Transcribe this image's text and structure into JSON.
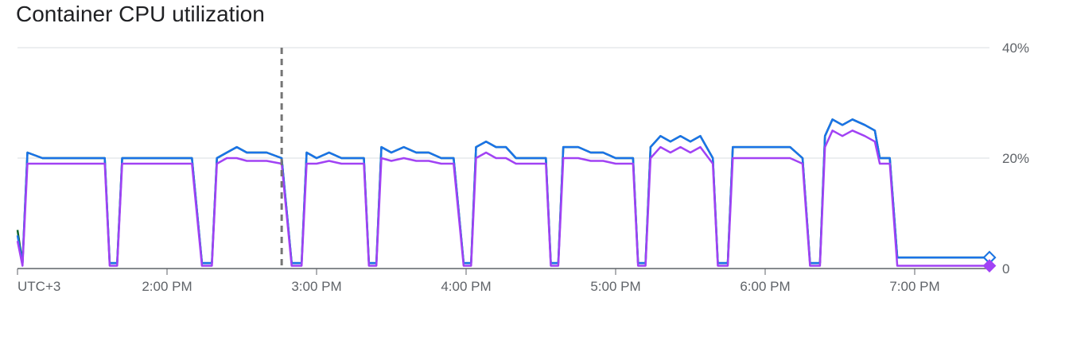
{
  "chart_data": {
    "type": "line",
    "title": "Container CPU utilization",
    "xlabel": "",
    "ylabel": "",
    "timezone_label": "UTC+3",
    "x_tick_labels": [
      "2:00 PM",
      "3:00 PM",
      "4:00 PM",
      "5:00 PM",
      "6:00 PM",
      "7:00 PM"
    ],
    "y_tick_labels": [
      "0",
      "20%",
      "40%"
    ],
    "y_ticks": [
      0,
      20,
      40
    ],
    "ylim": [
      0,
      40
    ],
    "x_range": [
      "13:00",
      "19:30"
    ],
    "grid": true,
    "marker_time": "14:46",
    "series": [
      {
        "color": "#0d652d",
        "points": [
          [
            "13:00",
            7
          ],
          [
            "13:02",
            1
          ],
          [
            "13:04",
            21
          ],
          [
            "13:10",
            20
          ],
          [
            "13:20",
            20
          ],
          [
            "13:30",
            20
          ],
          [
            "13:35",
            20
          ],
          [
            "13:37",
            1
          ],
          [
            "13:40",
            1
          ],
          [
            "13:42",
            20
          ],
          [
            "13:50",
            20
          ],
          [
            "13:55",
            20
          ],
          [
            "14:00",
            20
          ],
          [
            "14:05",
            20
          ],
          [
            "14:10",
            20
          ],
          [
            "14:14",
            1
          ],
          [
            "14:18",
            1
          ],
          [
            "14:20",
            20
          ],
          [
            "14:24",
            21
          ],
          [
            "14:28",
            22
          ],
          [
            "14:32",
            21
          ],
          [
            "14:36",
            21
          ],
          [
            "14:40",
            21
          ],
          [
            "14:46",
            20
          ],
          [
            "14:50",
            1
          ],
          [
            "14:54",
            1
          ],
          [
            "14:56",
            21
          ],
          [
            "15:00",
            20
          ],
          [
            "15:05",
            21
          ],
          [
            "15:10",
            20
          ],
          [
            "15:15",
            20
          ],
          [
            "15:19",
            20
          ],
          [
            "15:21",
            1
          ],
          [
            "15:24",
            1
          ],
          [
            "15:26",
            22
          ],
          [
            "15:30",
            21
          ],
          [
            "15:35",
            22
          ],
          [
            "15:40",
            21
          ],
          [
            "15:45",
            21
          ],
          [
            "15:50",
            20
          ],
          [
            "15:55",
            20
          ],
          [
            "15:59",
            1
          ],
          [
            "16:02",
            1
          ],
          [
            "16:04",
            22
          ],
          [
            "16:08",
            23
          ],
          [
            "16:12",
            22
          ],
          [
            "16:16",
            22
          ],
          [
            "16:20",
            20
          ],
          [
            "16:25",
            20
          ],
          [
            "16:32",
            20
          ],
          [
            "16:34",
            1
          ],
          [
            "16:37",
            1
          ],
          [
            "16:39",
            22
          ],
          [
            "16:45",
            22
          ],
          [
            "16:50",
            21
          ],
          [
            "16:55",
            21
          ],
          [
            "17:00",
            20
          ],
          [
            "17:07",
            20
          ],
          [
            "17:09",
            1
          ],
          [
            "17:12",
            1
          ],
          [
            "17:14",
            22
          ],
          [
            "17:18",
            24
          ],
          [
            "17:22",
            23
          ],
          [
            "17:26",
            24
          ],
          [
            "17:30",
            23
          ],
          [
            "17:34",
            24
          ],
          [
            "17:39",
            20
          ],
          [
            "17:41",
            1
          ],
          [
            "17:45",
            1
          ],
          [
            "17:47",
            22
          ],
          [
            "17:52",
            22
          ],
          [
            "17:56",
            22
          ],
          [
            "18:00",
            22
          ],
          [
            "18:05",
            22
          ],
          [
            "18:10",
            22
          ],
          [
            "18:15",
            20
          ],
          [
            "18:18",
            1
          ],
          [
            "18:22",
            1
          ],
          [
            "18:24",
            24
          ],
          [
            "18:27",
            27
          ],
          [
            "18:31",
            26
          ],
          [
            "18:35",
            27
          ],
          [
            "18:40",
            26
          ],
          [
            "18:44",
            25
          ],
          [
            "18:46",
            20
          ],
          [
            "18:50",
            20
          ],
          [
            "18:53",
            2
          ],
          [
            "19:30",
            2
          ]
        ]
      },
      {
        "color": "#1a73e8",
        "points": [
          [
            "13:00",
            6
          ],
          [
            "13:02",
            1
          ],
          [
            "13:04",
            21
          ],
          [
            "13:10",
            20
          ],
          [
            "13:20",
            20
          ],
          [
            "13:30",
            20
          ],
          [
            "13:35",
            20
          ],
          [
            "13:37",
            1
          ],
          [
            "13:40",
            1
          ],
          [
            "13:42",
            20
          ],
          [
            "13:50",
            20
          ],
          [
            "13:55",
            20
          ],
          [
            "14:00",
            20
          ],
          [
            "14:05",
            20
          ],
          [
            "14:10",
            20
          ],
          [
            "14:14",
            1
          ],
          [
            "14:18",
            1
          ],
          [
            "14:20",
            20
          ],
          [
            "14:24",
            21
          ],
          [
            "14:28",
            22
          ],
          [
            "14:32",
            21
          ],
          [
            "14:36",
            21
          ],
          [
            "14:40",
            21
          ],
          [
            "14:46",
            20
          ],
          [
            "14:50",
            1
          ],
          [
            "14:54",
            1
          ],
          [
            "14:56",
            21
          ],
          [
            "15:00",
            20
          ],
          [
            "15:05",
            21
          ],
          [
            "15:10",
            20
          ],
          [
            "15:15",
            20
          ],
          [
            "15:19",
            20
          ],
          [
            "15:21",
            1
          ],
          [
            "15:24",
            1
          ],
          [
            "15:26",
            22
          ],
          [
            "15:30",
            21
          ],
          [
            "15:35",
            22
          ],
          [
            "15:40",
            21
          ],
          [
            "15:45",
            21
          ],
          [
            "15:50",
            20
          ],
          [
            "15:55",
            20
          ],
          [
            "15:59",
            1
          ],
          [
            "16:02",
            1
          ],
          [
            "16:04",
            22
          ],
          [
            "16:08",
            23
          ],
          [
            "16:12",
            22
          ],
          [
            "16:16",
            22
          ],
          [
            "16:20",
            20
          ],
          [
            "16:25",
            20
          ],
          [
            "16:32",
            20
          ],
          [
            "16:34",
            1
          ],
          [
            "16:37",
            1
          ],
          [
            "16:39",
            22
          ],
          [
            "16:45",
            22
          ],
          [
            "16:50",
            21
          ],
          [
            "16:55",
            21
          ],
          [
            "17:00",
            20
          ],
          [
            "17:07",
            20
          ],
          [
            "17:09",
            1
          ],
          [
            "17:12",
            1
          ],
          [
            "17:14",
            22
          ],
          [
            "17:18",
            24
          ],
          [
            "17:22",
            23
          ],
          [
            "17:26",
            24
          ],
          [
            "17:30",
            23
          ],
          [
            "17:34",
            24
          ],
          [
            "17:39",
            20
          ],
          [
            "17:41",
            1
          ],
          [
            "17:45",
            1
          ],
          [
            "17:47",
            22
          ],
          [
            "17:52",
            22
          ],
          [
            "17:56",
            22
          ],
          [
            "18:00",
            22
          ],
          [
            "18:05",
            22
          ],
          [
            "18:10",
            22
          ],
          [
            "18:15",
            20
          ],
          [
            "18:18",
            1
          ],
          [
            "18:22",
            1
          ],
          [
            "18:24",
            24
          ],
          [
            "18:27",
            27
          ],
          [
            "18:31",
            26
          ],
          [
            "18:35",
            27
          ],
          [
            "18:40",
            26
          ],
          [
            "18:44",
            25
          ],
          [
            "18:46",
            20
          ],
          [
            "18:50",
            20
          ],
          [
            "18:53",
            2
          ],
          [
            "19:30",
            2
          ]
        ]
      },
      {
        "color": "#a142f4",
        "points": [
          [
            "13:00",
            5
          ],
          [
            "13:02",
            0.5
          ],
          [
            "13:04",
            19
          ],
          [
            "13:10",
            19
          ],
          [
            "13:20",
            19
          ],
          [
            "13:30",
            19
          ],
          [
            "13:35",
            19
          ],
          [
            "13:37",
            0.5
          ],
          [
            "13:40",
            0.5
          ],
          [
            "13:42",
            19
          ],
          [
            "13:50",
            19
          ],
          [
            "13:55",
            19
          ],
          [
            "14:00",
            19
          ],
          [
            "14:05",
            19
          ],
          [
            "14:10",
            19
          ],
          [
            "14:14",
            0.5
          ],
          [
            "14:18",
            0.5
          ],
          [
            "14:20",
            19
          ],
          [
            "14:24",
            20
          ],
          [
            "14:28",
            20
          ],
          [
            "14:32",
            19.5
          ],
          [
            "14:36",
            19.5
          ],
          [
            "14:40",
            19.5
          ],
          [
            "14:46",
            19
          ],
          [
            "14:50",
            0.5
          ],
          [
            "14:54",
            0.5
          ],
          [
            "14:56",
            19
          ],
          [
            "15:00",
            19
          ],
          [
            "15:05",
            19.5
          ],
          [
            "15:10",
            19
          ],
          [
            "15:15",
            19
          ],
          [
            "15:19",
            19
          ],
          [
            "15:21",
            0.5
          ],
          [
            "15:24",
            0.5
          ],
          [
            "15:26",
            20
          ],
          [
            "15:30",
            19.5
          ],
          [
            "15:35",
            20
          ],
          [
            "15:40",
            19.5
          ],
          [
            "15:45",
            19.5
          ],
          [
            "15:50",
            19
          ],
          [
            "15:55",
            19
          ],
          [
            "15:59",
            0.5
          ],
          [
            "16:02",
            0.5
          ],
          [
            "16:04",
            20
          ],
          [
            "16:08",
            21
          ],
          [
            "16:12",
            20
          ],
          [
            "16:16",
            20
          ],
          [
            "16:20",
            19
          ],
          [
            "16:25",
            19
          ],
          [
            "16:32",
            19
          ],
          [
            "16:34",
            0.5
          ],
          [
            "16:37",
            0.5
          ],
          [
            "16:39",
            20
          ],
          [
            "16:45",
            20
          ],
          [
            "16:50",
            19.5
          ],
          [
            "16:55",
            19.5
          ],
          [
            "17:00",
            19
          ],
          [
            "17:07",
            19
          ],
          [
            "17:09",
            0.5
          ],
          [
            "17:12",
            0.5
          ],
          [
            "17:14",
            20
          ],
          [
            "17:18",
            22
          ],
          [
            "17:22",
            21
          ],
          [
            "17:26",
            22
          ],
          [
            "17:30",
            21
          ],
          [
            "17:34",
            22
          ],
          [
            "17:39",
            19
          ],
          [
            "17:41",
            0.5
          ],
          [
            "17:45",
            0.5
          ],
          [
            "17:47",
            20
          ],
          [
            "17:52",
            20
          ],
          [
            "17:56",
            20
          ],
          [
            "18:00",
            20
          ],
          [
            "18:05",
            20
          ],
          [
            "18:10",
            20
          ],
          [
            "18:15",
            19
          ],
          [
            "18:18",
            0.5
          ],
          [
            "18:22",
            0.5
          ],
          [
            "18:24",
            22
          ],
          [
            "18:27",
            25
          ],
          [
            "18:31",
            24
          ],
          [
            "18:35",
            25
          ],
          [
            "18:40",
            24
          ],
          [
            "18:44",
            23
          ],
          [
            "18:46",
            19
          ],
          [
            "18:50",
            19
          ],
          [
            "18:53",
            0.5
          ],
          [
            "19:30",
            0.5
          ]
        ]
      }
    ]
  }
}
